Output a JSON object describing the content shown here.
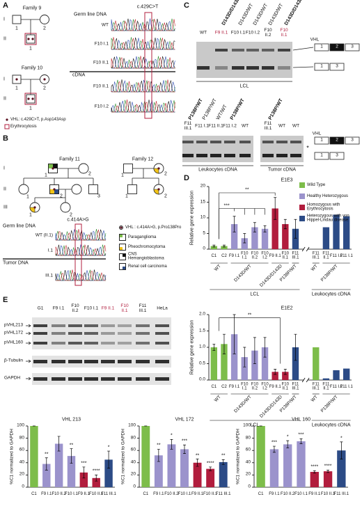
{
  "panel_labels": [
    "A",
    "B",
    "C",
    "D",
    "E"
  ],
  "panel_a": {
    "family_9": {
      "name": "Family 9",
      "numbers": [
        "1",
        "2",
        "1"
      ]
    },
    "family_10": {
      "name": "Family 10",
      "numbers": [
        "1",
        "2",
        "1"
      ]
    },
    "generations": [
      "I",
      "II"
    ],
    "mutation": "c.429C>T",
    "germline": "Germ line DNA",
    "cdna": "cDNA",
    "traces": [
      "WT",
      "F10 I.1",
      "F10 II.1",
      "F10 II.1",
      "F10 I.2"
    ],
    "legend": [
      "VHL: c.429C>T, p.Asp143Asp",
      "Erythrocytosis"
    ]
  },
  "panel_b": {
    "family_11": {
      "name": "Family 11",
      "numbers": [
        "1",
        "2",
        "1",
        "2",
        "3",
        "1",
        "2"
      ]
    },
    "family_12": {
      "name": "Family 12",
      "numbers": [
        "1",
        "2",
        "1",
        "2"
      ]
    },
    "generations": [
      "I",
      "II",
      "III"
    ],
    "mutation": "c.414A>G",
    "germline": "Germ line DNA",
    "tumor": "Tumor DNA",
    "traces": [
      "WT (II.1)",
      "I.1",
      "III.1"
    ],
    "legend": [
      "VHL : c.414A>G, p.Pro138Pro",
      "Paraganglioma",
      "Pheochromocytoma",
      "CNS Hemangioblastoma",
      "Renal cell carcinoma"
    ]
  },
  "panel_c": {
    "genotypes_top": [
      "D143D/D143D",
      "D143D/WT",
      "D143D/WT",
      "D143D/WT",
      "D143D/D143D"
    ],
    "lanes_top": [
      "WT",
      "F9 II.1",
      "F10 I.1",
      "F10 I.2",
      "F10 II.2",
      "F10 II.1"
    ],
    "lcl": "LCL",
    "vhl": "VHL",
    "exons": [
      "1",
      "2",
      "3"
    ],
    "genotypes_bottom": [
      "P138P/WT",
      "P138P/WT",
      "WT/WT",
      "P138P/WT"
    ],
    "lanes_bottom": [
      "F11 III.1",
      "F11 I.1",
      "F11 II.1",
      "F11 I.2",
      "WT"
    ],
    "leukocytes": "Leukocytes cDNA",
    "tumor_genotype": "P138P/WT",
    "tumor_lanes": [
      "F11 III.1",
      "WT",
      "WT"
    ],
    "tumor": "Tumor cDNA",
    "star": "*"
  },
  "panel_d": {
    "legend": [
      {
        "name": "Wild Type",
        "color": "#7dbd4a"
      },
      {
        "name": "Healthy Heterozygous",
        "color": "#9b93cc"
      },
      {
        "name": "Homozygous with Erythrocytosis",
        "color": "#b11d3d"
      },
      {
        "name": "Heterozygous with von Hippel-Lindau disease",
        "color": "#2c4b86"
      }
    ],
    "y_label": "Relative gene expression",
    "groups": [
      "WT",
      "D143D/WT",
      "D143D/D143D",
      "P138P/WT",
      "WT",
      "P138P/WT"
    ],
    "sources": [
      "LCL",
      "Leukocytes cDNA"
    ],
    "charts": [
      {
        "type": "bar",
        "title": "E1E3",
        "categories": [
          "C1",
          "C2",
          "F9 I.1",
          "F10 I.1",
          "F10 II.2",
          "F10 I.2",
          "F9 II.1",
          "F10 II.1",
          "F11 III.1",
          "F11 III.1",
          "F11 II.1",
          "F11 I.2",
          "F11 I.1"
        ],
        "values": [
          1,
          1,
          8,
          3.5,
          7,
          6.5,
          13,
          8,
          6.5,
          0,
          7,
          11,
          10.5
        ],
        "errors": [
          0.3,
          0.3,
          2.5,
          1.5,
          1.5,
          1,
          3.5,
          1.5,
          3,
          null,
          null,
          null,
          null
        ],
        "colors": [
          "#7dbd4a",
          "#7dbd4a",
          "#9b93cc",
          "#9b93cc",
          "#9b93cc",
          "#9b93cc",
          "#b11d3d",
          "#b11d3d",
          "#2c4b86",
          "#7dbd4a",
          "#2c4b86",
          "#2c4b86",
          "#2c4b86"
        ],
        "ylim": [
          0,
          20
        ],
        "yticks": [
          0,
          5,
          10,
          15,
          20
        ],
        "significance": [
          "**",
          "***"
        ]
      },
      {
        "type": "bar",
        "title": "E1E2",
        "categories": [
          "C1",
          "C2",
          "F9 I.1",
          "F10 I.1",
          "F10 II.2",
          "F10 I.2",
          "F9 II.1",
          "F10 II.1",
          "F11 III.1",
          "F11 III.1",
          "F11 II.1",
          "F11 I.2",
          "F11 I.1"
        ],
        "values": [
          1,
          1.1,
          1.4,
          0.7,
          0.9,
          1,
          0.25,
          0.25,
          1,
          1,
          0.05,
          0.3,
          0.35
        ],
        "errors": [
          0.1,
          0.3,
          0.6,
          0.3,
          0.4,
          0.3,
          0.08,
          0.08,
          0.4,
          null,
          null,
          null,
          null
        ],
        "colors": [
          "#7dbd4a",
          "#7dbd4a",
          "#9b93cc",
          "#9b93cc",
          "#9b93cc",
          "#9b93cc",
          "#b11d3d",
          "#b11d3d",
          "#2c4b86",
          "#7dbd4a",
          "#2c4b86",
          "#2c4b86",
          "#2c4b86"
        ],
        "ylim": [
          0,
          2
        ],
        "yticks": [
          {
            "value": 0,
            "label": "0.0"
          },
          {
            "value": 0.5,
            "label": "0.5"
          },
          {
            "value": 1,
            "label": "1.0"
          },
          {
            "value": 1.5,
            "label": "1.5"
          },
          {
            "value": 2,
            "label": "2.0"
          }
        ],
        "significance": [
          "**"
        ]
      }
    ]
  },
  "panel_e": {
    "lanes": [
      "G1",
      "F9 I.1",
      "F10 II.2",
      "F10 I.1",
      "F9 II.1",
      "F10 II.1",
      "F11 III.1",
      "HeLa"
    ],
    "rows": [
      "pVHL213",
      "pVHL172",
      "pVHL160",
      "β-Tubulin",
      "GAPDH"
    ],
    "y_label": "%C1 normalized to GAPDH",
    "charts": [
      {
        "type": "bar",
        "title": "VHL 213",
        "categories": [
          "C1",
          "F9 I.1",
          "F10 II.2",
          "F10 I.1",
          "F9 II.1",
          "F10 II.1",
          "F11 III.1"
        ],
        "values": [
          100,
          38,
          71,
          51,
          24,
          15,
          45
        ],
        "errors": [
          0,
          10,
          12,
          12,
          9,
          5,
          14
        ],
        "colors": [
          "#7dbd4a",
          "#9b93cc",
          "#9b93cc",
          "#9b93cc",
          "#b11d3d",
          "#b11d3d",
          "#2c4b86"
        ],
        "ylim": [
          0,
          100
        ],
        "yticks": [
          0,
          20,
          40,
          60,
          80,
          100
        ],
        "significance": [
          null,
          "**",
          null,
          "**",
          "***",
          "****",
          "*"
        ]
      },
      {
        "type": "bar",
        "title": "VHL 172",
        "categories": [
          "C1",
          "F9 I.1",
          "F10 II.2",
          "F10 I.1",
          "F9 II.1",
          "F10 II.1",
          "F11 III.1"
        ],
        "values": [
          100,
          52,
          70,
          62,
          40,
          30,
          41
        ],
        "errors": [
          0,
          10,
          8,
          7,
          6,
          3,
          4
        ],
        "colors": [
          "#7dbd4a",
          "#9b93cc",
          "#9b93cc",
          "#9b93cc",
          "#b11d3d",
          "#b11d3d",
          "#2c4b86"
        ],
        "ylim": [
          0,
          100
        ],
        "yticks": [
          0,
          20,
          40,
          60,
          80,
          100
        ],
        "significance": [
          null,
          "**",
          "*",
          "***",
          "**",
          "****",
          "**"
        ]
      },
      {
        "type": "bar",
        "title": "VHL 160",
        "categories": [
          "C1",
          "F9 I.1",
          "F10 II.2",
          "F10 I.1",
          "F9 II.1",
          "F10 II.1",
          "F11 III.1"
        ],
        "values": [
          100,
          62,
          70,
          75,
          25,
          26,
          60
        ],
        "errors": [
          0,
          5,
          6,
          4,
          2,
          2,
          14
        ],
        "colors": [
          "#7dbd4a",
          "#9b93cc",
          "#9b93cc",
          "#9b93cc",
          "#b11d3d",
          "#b11d3d",
          "#2c4b86"
        ],
        "ylim": [
          0,
          100
        ],
        "yticks": [
          0,
          20,
          40,
          60,
          80,
          100
        ],
        "significance": [
          null,
          "***",
          "*",
          "***",
          "****",
          "****",
          "*"
        ]
      }
    ]
  }
}
